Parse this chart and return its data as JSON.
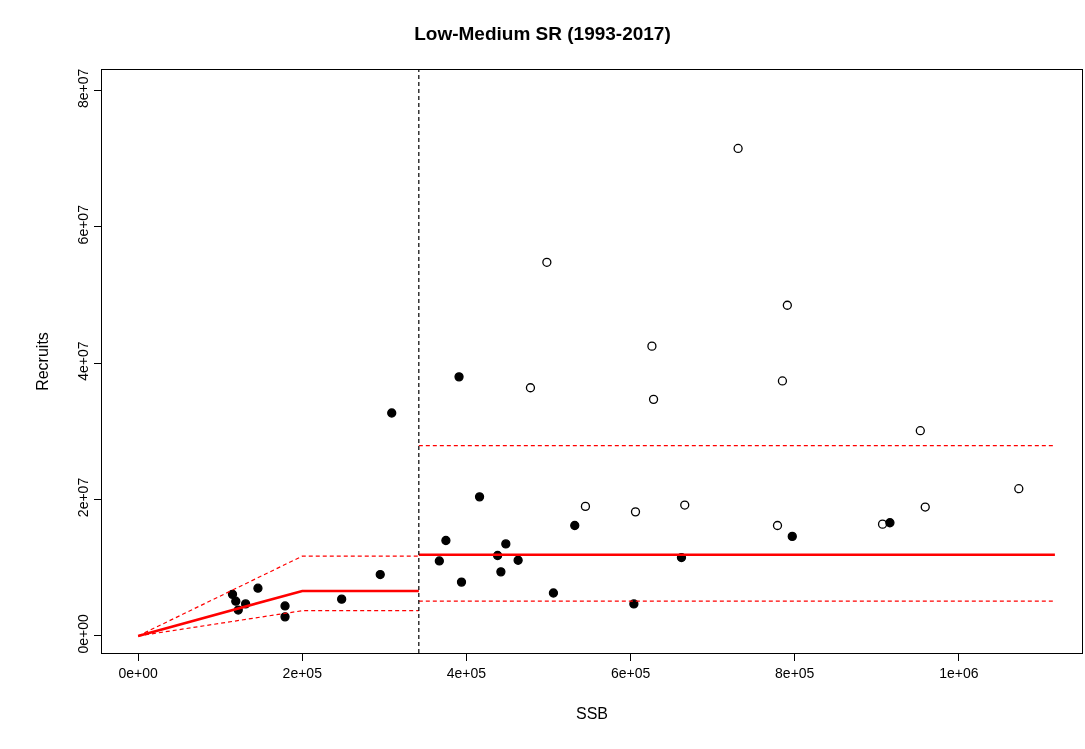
{
  "chart_data": {
    "type": "scatter",
    "title": "Low-Medium SR (1993-2017)",
    "xlabel": "SSB",
    "ylabel": "Recruits",
    "xlim": [
      -44000,
      1150000
    ],
    "ylim": [
      -2500000,
      83000000
    ],
    "xticks": [
      {
        "value": 0,
        "label": "0e+00"
      },
      {
        "value": 200000,
        "label": "2e+05"
      },
      {
        "value": 400000,
        "label": "4e+05"
      },
      {
        "value": 600000,
        "label": "6e+05"
      },
      {
        "value": 800000,
        "label": "8e+05"
      },
      {
        "value": 1000000,
        "label": "1e+06"
      }
    ],
    "yticks": [
      {
        "value": 0,
        "label": "0e+00"
      },
      {
        "value": 20000000,
        "label": "2e+07"
      },
      {
        "value": 40000000,
        "label": "4e+07"
      },
      {
        "value": 60000000,
        "label": "6e+07"
      },
      {
        "value": 80000000,
        "label": "8e+07"
      }
    ],
    "ref_lines": [
      {
        "axis": "x",
        "value": 342000,
        "label": null,
        "color": "#000000",
        "line_style": "dashed"
      }
    ],
    "series": [
      {
        "marker": "circle",
        "color": "#000000",
        "x": [
          115000,
          119000,
          122000,
          131000,
          146000,
          179000,
          179000,
          248000,
          295000,
          309000,
          367000,
          375000,
          391000,
          394000,
          416000,
          438000,
          442000,
          448000,
          463000,
          506000,
          532000,
          604000,
          662000,
          797000,
          916000
        ],
        "values": [
          6100000,
          5100000,
          3800000,
          4700000,
          7000000,
          4400000,
          2800000,
          5400000,
          9000000,
          32700000,
          11000000,
          14000000,
          38000000,
          7900000,
          20400000,
          11800000,
          9400000,
          13500000,
          11100000,
          6300000,
          16200000,
          4700000,
          11500000,
          14600000,
          16600000
        ]
      },
      {
        "marker": "circle-open",
        "color": "#000000",
        "x": [
          731000,
          498000,
          791000,
          626000,
          785000,
          478000,
          628000,
          545000,
          606000,
          666000,
          779000,
          953000,
          1073000,
          959000,
          907000
        ],
        "values": [
          71500000,
          54800000,
          48500000,
          42500000,
          37400000,
          36400000,
          34700000,
          19000000,
          18200000,
          19200000,
          16200000,
          30100000,
          21600000,
          18900000,
          16400000
        ]
      },
      {
        "type": "line",
        "line_style": "solid",
        "color": "#ff0000",
        "x": [
          0,
          200000,
          342000
        ],
        "values": [
          0,
          6600000,
          6600000
        ]
      },
      {
        "type": "line",
        "line_style": "dashed",
        "color": "#ff0000",
        "x": [
          0,
          200000,
          342000
        ],
        "values": [
          0,
          11700000,
          11700000
        ]
      },
      {
        "type": "line",
        "line_style": "dashed",
        "color": "#ff0000",
        "x": [
          0,
          200000,
          342000
        ],
        "values": [
          0,
          3700000,
          3700000
        ]
      },
      {
        "type": "line",
        "line_style": "solid",
        "color": "#ff0000",
        "x": [
          342000,
          1117000
        ],
        "values": [
          11900000,
          11900000
        ]
      },
      {
        "type": "line",
        "line_style": "dashed",
        "color": "#ff0000",
        "x": [
          342000,
          1117000
        ],
        "values": [
          27900000,
          27900000
        ]
      },
      {
        "type": "line",
        "line_style": "dashed",
        "color": "#ff0000",
        "x": [
          342000,
          1117000
        ],
        "values": [
          5100000,
          5100000
        ]
      }
    ]
  }
}
